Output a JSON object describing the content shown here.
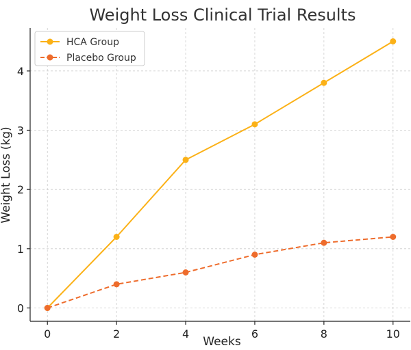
{
  "chart_data": {
    "type": "line",
    "title": "Weight Loss Clinical Trial Results",
    "xlabel": "Weeks",
    "ylabel": "Weight Loss (kg)",
    "x": [
      0,
      2,
      4,
      6,
      8,
      10
    ],
    "xlim": [
      -0.5,
      10.5
    ],
    "ylim": [
      -0.225,
      4.725
    ],
    "xticks": [
      0,
      2,
      4,
      6,
      8,
      10
    ],
    "yticks": [
      0,
      1,
      2,
      3,
      4
    ],
    "grid": true,
    "legend_position": "top-left",
    "series": [
      {
        "name": "HCA Group",
        "values": [
          0,
          1.2,
          2.5,
          3.1,
          3.8,
          4.5
        ],
        "color": "#FBB117",
        "line_style": "solid",
        "marker": "circle"
      },
      {
        "name": "Placebo Group",
        "values": [
          0,
          0.4,
          0.6,
          0.9,
          1.1,
          1.2
        ],
        "color": "#EE6C2C",
        "line_style": "dashed",
        "marker": "circle"
      }
    ]
  }
}
